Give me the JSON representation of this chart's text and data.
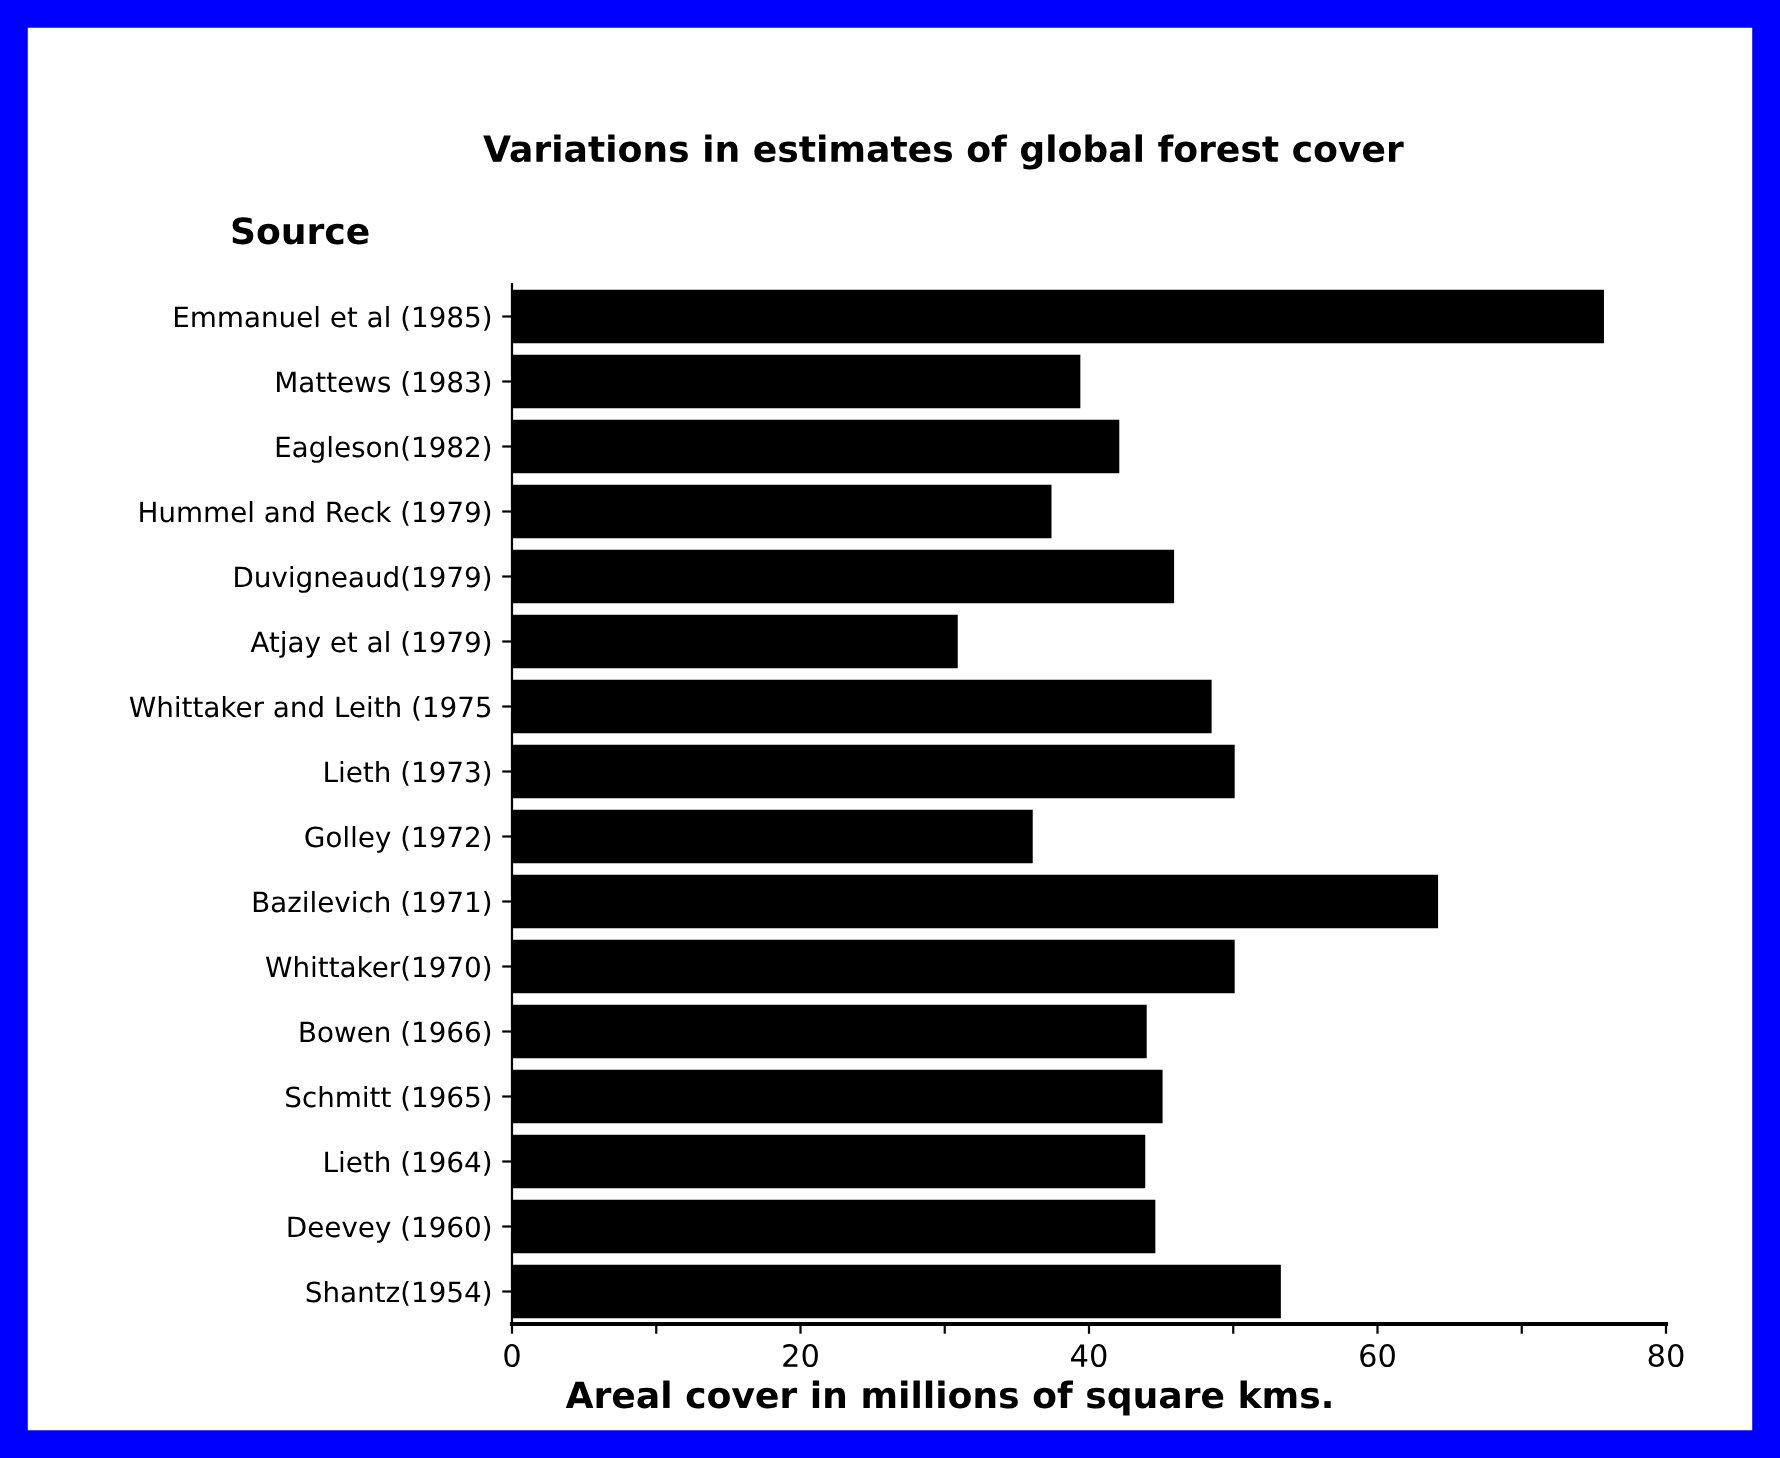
{
  "chart_data": {
    "type": "bar",
    "orientation": "horizontal",
    "title": "Variations in estimates of global forest cover",
    "ylabel": "Source",
    "xlabel": "Areal cover in millions of square kms.",
    "categories": [
      "Emmanuel et al (1985)",
      "Mattews (1983)",
      "Eagleson(1982)",
      "Hummel and Reck (1979)",
      "Duvigneaud(1979)",
      "Atjay et al (1979)",
      "Whittaker and Leith (1975",
      "Lieth (1973)",
      "Golley (1972)",
      "Bazilevich (1971)",
      "Whittaker(1970)",
      "Bowen (1966)",
      "Schmitt (1965)",
      "Lieth (1964)",
      "Deevey (1960)",
      "Shantz(1954)"
    ],
    "values": [
      75.7,
      39.4,
      42.1,
      37.4,
      45.9,
      30.9,
      48.5,
      50.1,
      36.1,
      64.2,
      50.1,
      44.0,
      45.1,
      43.9,
      44.6,
      53.3
    ],
    "color": "#000000",
    "xlim": [
      0,
      80
    ],
    "xticks": [
      0,
      {
        "value": 10,
        "label": null
      },
      20,
      {
        "value": 30,
        "label": null
      },
      40,
      {
        "value": 50,
        "label": null
      },
      60,
      {
        "value": 70,
        "label": null
      },
      80
    ],
    "grid": false,
    "legend": false
  }
}
